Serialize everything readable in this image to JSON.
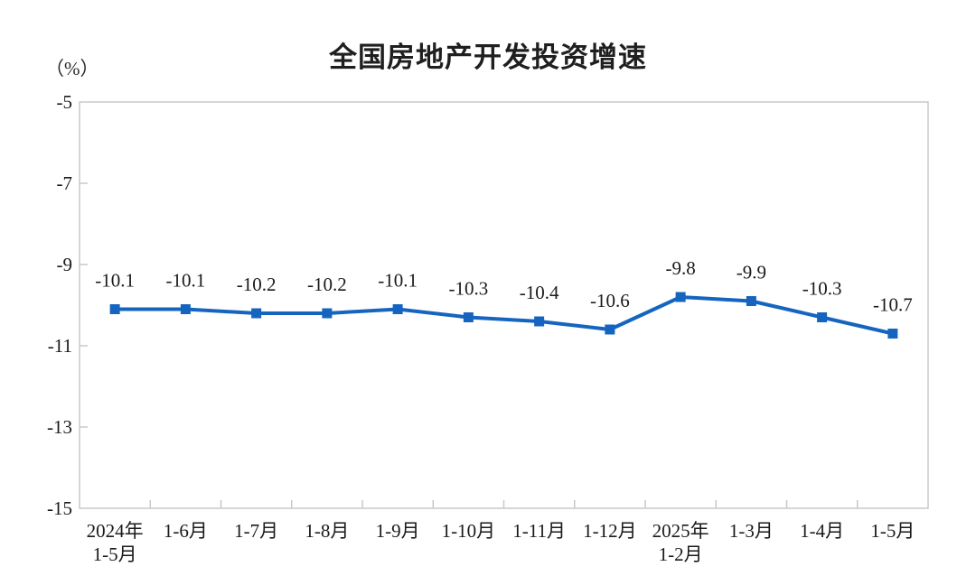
{
  "chart_data": {
    "type": "line",
    "title": "全国房地产开发投资增速",
    "unit_label": "（%）",
    "series_name": "全国房地产开发投资增速",
    "categories": [
      [
        "2024年",
        "1-5月"
      ],
      [
        "1-6月"
      ],
      [
        "1-7月"
      ],
      [
        "1-8月"
      ],
      [
        "1-9月"
      ],
      [
        "1-10月"
      ],
      [
        "1-11月"
      ],
      [
        "1-12月"
      ],
      [
        "2025年",
        "1-2月"
      ],
      [
        "1-3月"
      ],
      [
        "1-4月"
      ],
      [
        "1-5月"
      ]
    ],
    "values": [
      -10.1,
      -10.1,
      -10.2,
      -10.2,
      -10.1,
      -10.3,
      -10.4,
      -10.6,
      -9.8,
      -9.9,
      -10.3,
      -10.7
    ],
    "data_labels": [
      "-10.1",
      "-10.1",
      "-10.2",
      "-10.2",
      "-10.1",
      "-10.3",
      "-10.4",
      "-10.6",
      "-9.8",
      "-9.9",
      "-10.3",
      "-10.7"
    ],
    "ylim": [
      -15,
      -5
    ],
    "yticks": [
      -5,
      -7,
      -9,
      -11,
      -13,
      -15
    ],
    "ytick_labels": [
      "-5",
      "-7",
      "-9",
      "-11",
      "-13",
      "-15"
    ],
    "xlabel": "",
    "ylabel": "（%）",
    "grid": false,
    "legend_position": "none",
    "colors": {
      "line": "#1565c0",
      "marker": "#1565c0",
      "axis_border": "#c8c8c8",
      "tick": "#b4b4b4",
      "text": "#1a1a1a",
      "background": "#ffffff"
    }
  }
}
